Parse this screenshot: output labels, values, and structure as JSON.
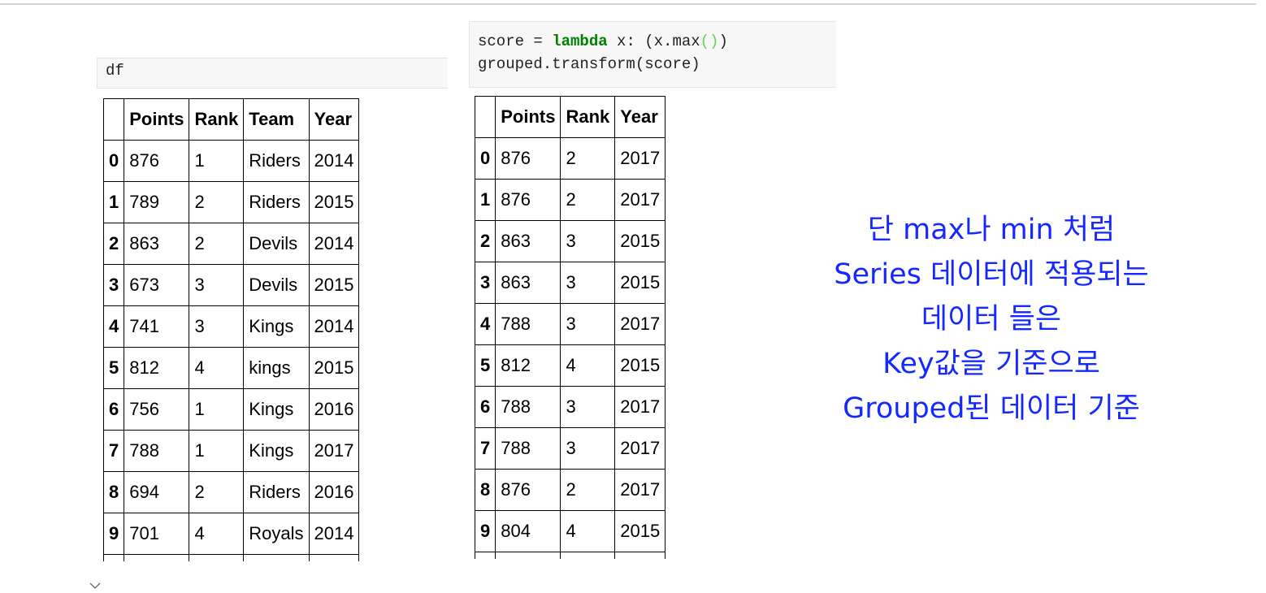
{
  "left_cell": {
    "code": "df"
  },
  "right_cell": {
    "line1": {
      "a": "score = ",
      "kw": "lambda",
      "b": " x: (x.max",
      "paren": "()",
      "c": ")"
    },
    "line2": "grouped.transform(score)"
  },
  "left_table": {
    "columns": [
      "",
      "Points",
      "Rank",
      "Team",
      "Year"
    ],
    "rows": [
      [
        "0",
        "876",
        "1",
        "Riders",
        "2014"
      ],
      [
        "1",
        "789",
        "2",
        "Riders",
        "2015"
      ],
      [
        "2",
        "863",
        "2",
        "Devils",
        "2014"
      ],
      [
        "3",
        "673",
        "3",
        "Devils",
        "2015"
      ],
      [
        "4",
        "741",
        "3",
        "Kings",
        "2014"
      ],
      [
        "5",
        "812",
        "4",
        "kings",
        "2015"
      ],
      [
        "6",
        "756",
        "1",
        "Kings",
        "2016"
      ],
      [
        "7",
        "788",
        "1",
        "Kings",
        "2017"
      ],
      [
        "8",
        "694",
        "2",
        "Riders",
        "2016"
      ],
      [
        "9",
        "701",
        "4",
        "Royals",
        "2014"
      ]
    ]
  },
  "right_table": {
    "columns": [
      "",
      "Points",
      "Rank",
      "Year"
    ],
    "rows": [
      [
        "0",
        "876",
        "2",
        "2017"
      ],
      [
        "1",
        "876",
        "2",
        "2017"
      ],
      [
        "2",
        "863",
        "3",
        "2015"
      ],
      [
        "3",
        "863",
        "3",
        "2015"
      ],
      [
        "4",
        "788",
        "3",
        "2017"
      ],
      [
        "5",
        "812",
        "4",
        "2015"
      ],
      [
        "6",
        "788",
        "3",
        "2017"
      ],
      [
        "7",
        "788",
        "3",
        "2017"
      ],
      [
        "8",
        "876",
        "2",
        "2017"
      ],
      [
        "9",
        "804",
        "4",
        "2015"
      ]
    ]
  },
  "annotation": {
    "lines": [
      "단 max나 min 처럼",
      "Series 데이터에 적용되는",
      "데이터 들은",
      "Key값을 기준으로",
      "Grouped된 데이터 기준"
    ],
    "color": "#1428ff"
  },
  "icons": {
    "collapse": "chevron-down-icon"
  }
}
